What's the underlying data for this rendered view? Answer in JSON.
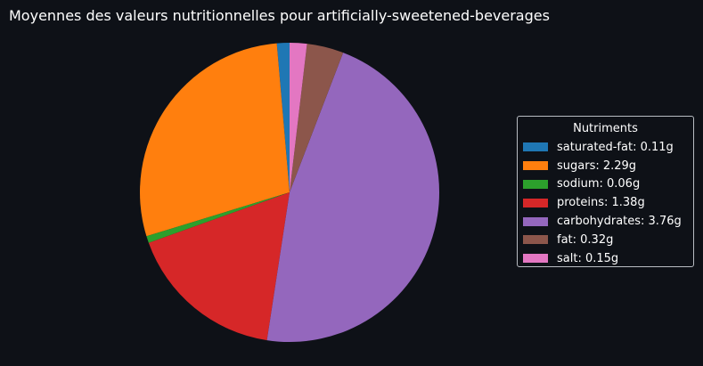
{
  "chart_data": {
    "type": "pie",
    "title": "Moyennes des valeurs nutritionnelles pour artificially-sweetened-beverages",
    "categories": [
      "saturated-fat",
      "sugars",
      "sodium",
      "proteins",
      "carbohydrates",
      "fat",
      "salt"
    ],
    "values": [
      0.11,
      2.29,
      0.06,
      1.38,
      3.76,
      0.32,
      0.15
    ],
    "colors": [
      "#1f77b4",
      "#ff7f0e",
      "#2ca02c",
      "#d62728",
      "#9467bd",
      "#8c564b",
      "#e377c2"
    ],
    "legend": {
      "title": "Nutriments",
      "placement": "right",
      "entries": [
        "saturated-fat: 0.11g",
        "sugars: 2.29g",
        "sodium: 0.06g",
        "proteins: 1.38g",
        "carbohydrates: 3.76g",
        "fat: 0.32g",
        "salt: 0.15g"
      ]
    },
    "start_angle": 90,
    "direction": "counterclockwise"
  },
  "theme": {
    "background": "#0e1117",
    "text": "#ffffff",
    "legend_border": "#b8bcc2"
  }
}
